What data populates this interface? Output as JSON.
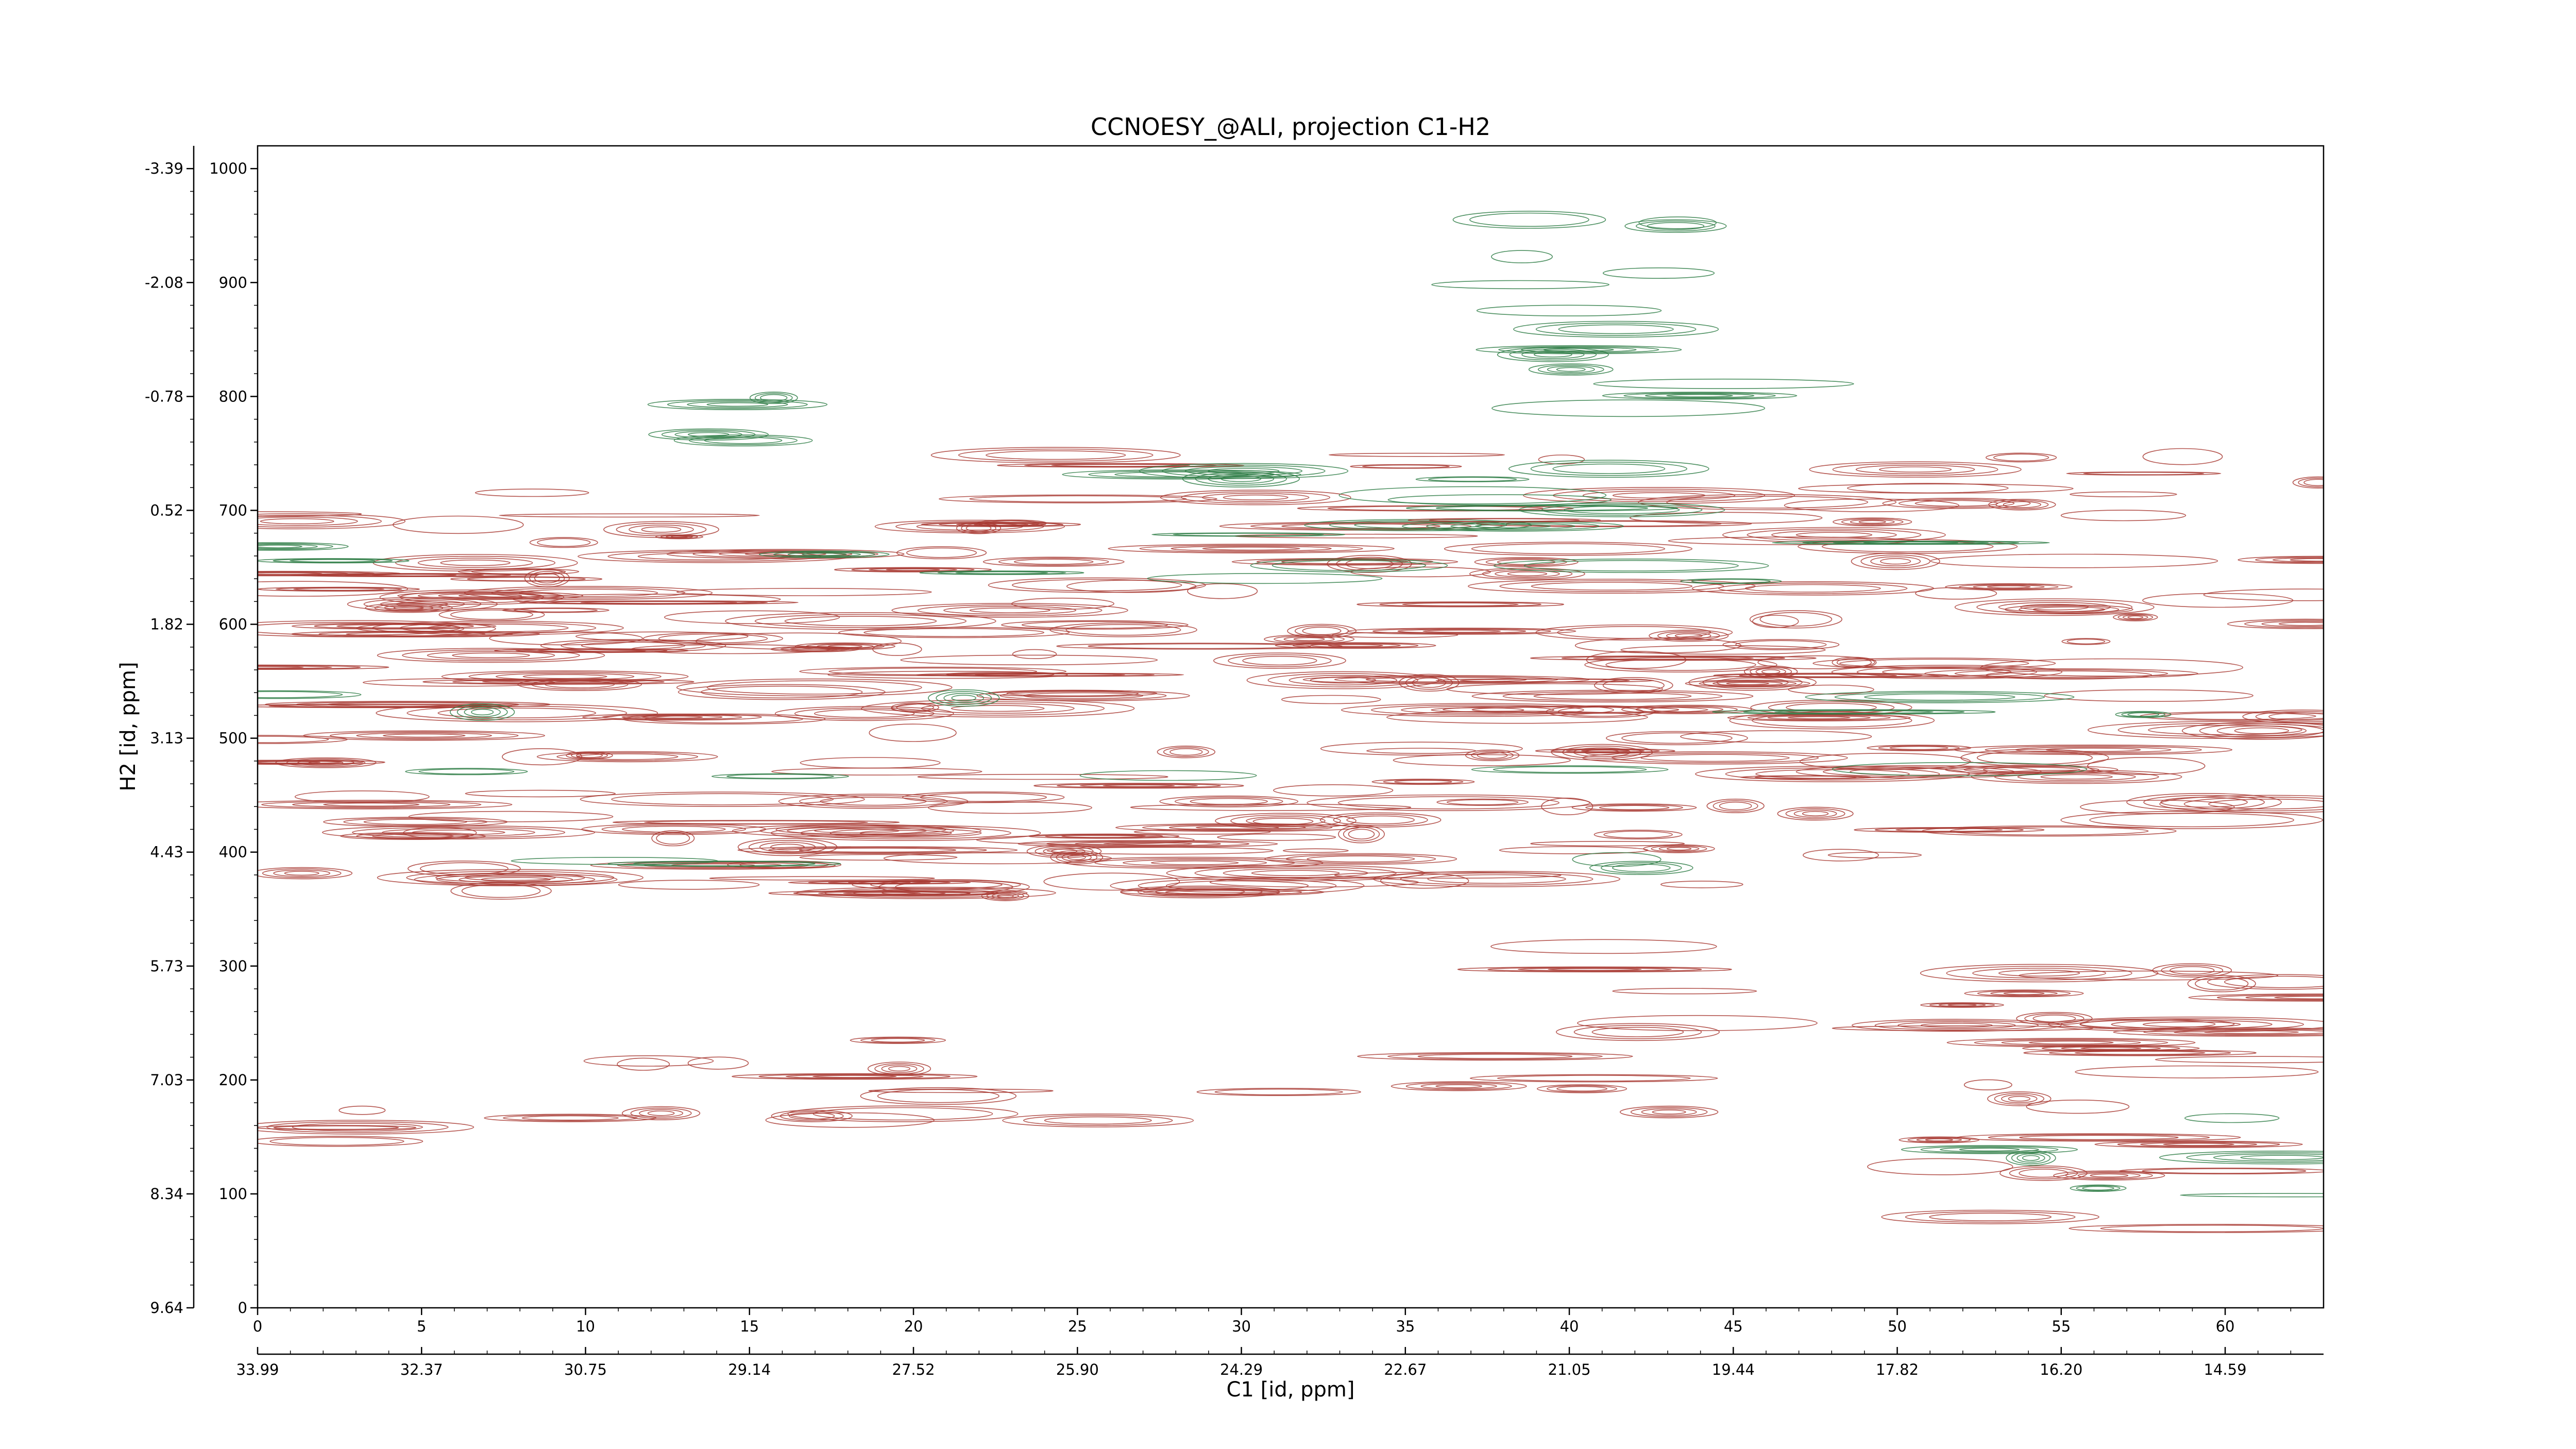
{
  "chart_data": {
    "type": "heatmap",
    "title": "CCNOESY_@ALI, projection C1-H2",
    "xlabel": "C1 [id, ppm]",
    "ylabel": "H2 [id, ppm]",
    "xlim": [
      0,
      63
    ],
    "ylim": [
      0,
      1020
    ],
    "x_ticks": [
      0,
      5,
      10,
      15,
      20,
      25,
      30,
      35,
      40,
      45,
      50,
      55,
      60
    ],
    "x_ppm_ticks": [
      "33.99",
      "32.37",
      "30.75",
      "29.14",
      "27.52",
      "25.90",
      "24.29",
      "22.67",
      "21.05",
      "19.44",
      "17.82",
      "16.20",
      "14.59"
    ],
    "y_ticks": [
      0,
      100,
      200,
      300,
      400,
      500,
      600,
      700,
      800,
      900,
      1000
    ],
    "y_ppm_ticks": [
      "9.64",
      "8.34",
      "7.03",
      "5.73",
      "4.43",
      "3.13",
      "1.82",
      "0.52",
      "-0.78",
      "-2.08",
      "-3.39"
    ],
    "grid": false,
    "colors": {
      "positive": "#a83a32",
      "negative": "#2e7d45"
    },
    "bands": [
      {
        "x": [
          0,
          63
        ],
        "y": [
          360,
          720
        ],
        "sign": "positive",
        "density": 1.0
      },
      {
        "x": [
          0,
          63
        ],
        "y": [
          520,
          540
        ],
        "sign": "negative",
        "density": 0.35
      },
      {
        "x": [
          0,
          63
        ],
        "y": [
          380,
          395
        ],
        "sign": "negative",
        "density": 0.35
      },
      {
        "x": [
          0,
          63
        ],
        "y": [
          455,
          475
        ],
        "sign": "negative",
        "density": 0.3
      },
      {
        "x": [
          0,
          63
        ],
        "y": [
          630,
          690
        ],
        "sign": "negative",
        "density": 0.25
      },
      {
        "x": [
          9,
          26
        ],
        "y": [
          160,
          250
        ],
        "sign": "positive",
        "density": 0.7
      },
      {
        "x": [
          37,
          44
        ],
        "y": [
          160,
          340
        ],
        "sign": "positive",
        "density": 0.5
      },
      {
        "x": [
          51,
          63
        ],
        "y": [
          60,
          300
        ],
        "sign": "positive",
        "density": 0.85
      },
      {
        "x": [
          52,
          63
        ],
        "y": [
          90,
          170
        ],
        "sign": "negative",
        "density": 0.5
      },
      {
        "x": [
          0,
          4
        ],
        "y": [
          80,
          200
        ],
        "sign": "positive",
        "density": 0.7
      },
      {
        "x": [
          29,
          41
        ],
        "y": [
          180,
          225
        ],
        "sign": "positive",
        "density": 0.4
      },
      {
        "x": [
          50,
          63
        ],
        "y": [
          700,
          760
        ],
        "sign": "positive",
        "density": 0.8
      },
      {
        "x": [
          22,
          40
        ],
        "y": [
          690,
          760
        ],
        "sign": "positive",
        "density": 0.35
      },
      {
        "x": [
          26,
          33
        ],
        "y": [
          710,
          790
        ],
        "sign": "negative",
        "density": 0.45
      },
      {
        "x": [
          12,
          18
        ],
        "y": [
          700,
          800
        ],
        "sign": "negative",
        "density": 0.55
      },
      {
        "x": [
          37,
          45
        ],
        "y": [
          700,
          960
        ],
        "sign": "negative",
        "density": 0.75
      }
    ]
  }
}
